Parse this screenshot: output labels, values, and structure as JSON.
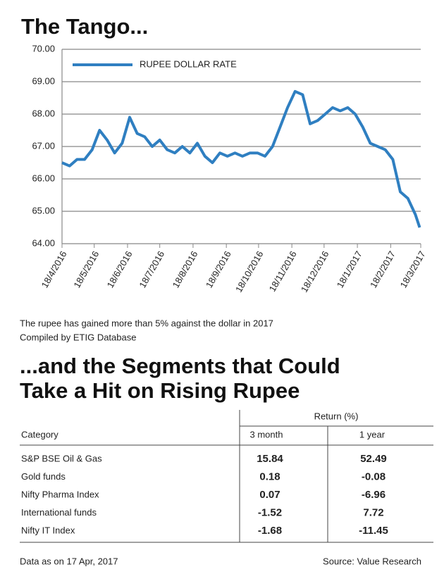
{
  "chart_data": {
    "type": "line",
    "title": "The Tango...",
    "x": [
      "18/4/2016",
      "25/4/2016",
      "2/5/2016",
      "9/5/2016",
      "16/5/2016",
      "23/5/2016",
      "30/5/2016",
      "6/6/2016",
      "13/6/2016",
      "20/6/2016",
      "27/6/2016",
      "4/7/2016",
      "11/7/2016",
      "18/7/2016",
      "25/7/2016",
      "1/8/2016",
      "8/8/2016",
      "15/8/2016",
      "22/8/2016",
      "29/8/2016",
      "5/9/2016",
      "12/9/2016",
      "19/9/2016",
      "26/9/2016",
      "3/10/2016",
      "10/10/2016",
      "17/10/2016",
      "24/10/2016",
      "31/10/2016",
      "7/11/2016",
      "14/11/2016",
      "21/11/2016",
      "28/11/2016",
      "5/12/2016",
      "12/12/2016",
      "19/12/2016",
      "26/12/2016",
      "2/1/2017",
      "9/1/2017",
      "16/1/2017",
      "23/1/2017",
      "30/1/2017",
      "6/2/2017",
      "13/2/2017",
      "20/2/2017",
      "27/2/2017",
      "6/3/2017",
      "13/3/2017",
      "17/3/2017"
    ],
    "series": [
      {
        "name": "RUPEE DOLLAR RATE",
        "color": "#2f7fc1",
        "values": [
          66.5,
          66.4,
          66.6,
          66.6,
          66.9,
          67.5,
          67.2,
          66.8,
          67.1,
          67.9,
          67.4,
          67.3,
          67.0,
          67.2,
          66.9,
          66.8,
          67.0,
          66.8,
          67.1,
          66.7,
          66.5,
          66.8,
          66.7,
          66.8,
          66.7,
          66.8,
          66.8,
          66.7,
          67.0,
          67.6,
          68.2,
          68.7,
          68.6,
          67.7,
          67.8,
          68.0,
          68.2,
          68.1,
          68.2,
          68.0,
          67.6,
          67.1,
          67.0,
          66.9,
          66.6,
          65.6,
          65.4,
          64.9,
          64.5
        ]
      }
    ],
    "xlim": [
      "18/4/2016",
      "18/3/2017"
    ],
    "xticks": [
      "18/4/2016",
      "18/5/2016",
      "18/6/2016",
      "18/7/2016",
      "18/8/2016",
      "18/9/2016",
      "18/10/2016",
      "18/11/2016",
      "18/12/2016",
      "18/1/2017",
      "18/2/2017",
      "18/3/2017"
    ],
    "ylim": [
      64,
      70
    ],
    "yticks": [
      {
        "value": 64,
        "label": "64.00"
      },
      {
        "value": 65,
        "label": "65.00"
      },
      {
        "value": 66,
        "label": "66.00"
      },
      {
        "value": 67,
        "label": "67.00"
      },
      {
        "value": 68,
        "label": "68.00"
      },
      {
        "value": 69,
        "label": "69.00"
      },
      {
        "value": 70,
        "label": "70.00"
      }
    ],
    "grid": true,
    "legend": "top-left"
  },
  "notes": [
    "The rupee has gained more than 5% against the dollar in 2017",
    "Compiled by ETIG Database"
  ],
  "table_title": [
    "...and the Segments that Could",
    "Take a Hit on Rising Rupee"
  ],
  "table": {
    "group_header": "Return (%)",
    "columns": [
      "Category",
      "3 month",
      "1 year"
    ],
    "rows": [
      [
        "S&P BSE Oil & Gas",
        15.84,
        52.49
      ],
      [
        "Gold funds",
        0.18,
        -0.08
      ],
      [
        "Nifty Pharma Index",
        0.07,
        -6.96
      ],
      [
        "International funds",
        -1.52,
        7.72
      ],
      [
        "Nifty IT Index",
        -1.68,
        -11.45
      ]
    ]
  },
  "footer": {
    "left": "Data as on 17 Apr, 2017",
    "right": "Source: Value Research"
  }
}
